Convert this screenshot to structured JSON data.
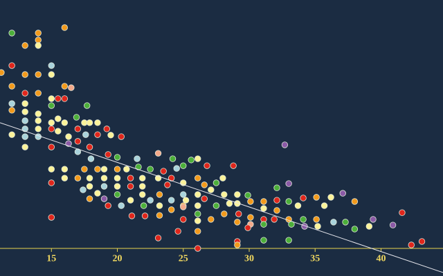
{
  "chart_data": {
    "type": "scatter",
    "xlim": [
      11.1,
      44.7
    ],
    "ylim": [
      -11.1,
      100
    ],
    "xticks": [
      15,
      20,
      25,
      30,
      35,
      40
    ],
    "palette": [
      "#e0261c",
      "#f39a1c",
      "#fbf39a",
      "#4caf3a",
      "#a9d3dc",
      "#8b5aa6",
      "#f4a98a"
    ],
    "x": [
      12.0,
      14.0,
      14.0,
      14.0,
      16.0,
      13.0,
      11.2,
      12.0,
      15.0,
      15.0,
      13.0,
      14.0,
      12.0,
      16.0,
      16.5,
      13.0,
      14.0,
      15.0,
      15.5,
      16.0,
      12.0,
      13.0,
      15.0,
      17.7,
      12.0,
      13.0,
      14.0,
      16.9,
      15.5,
      13.0,
      14.0,
      15.0,
      16.0,
      17.5,
      17.9,
      18.5,
      19.2,
      17.0,
      13.0,
      14.0,
      15.0,
      15.5,
      12.0,
      13.0,
      14.0,
      16.3,
      17.6,
      18.5,
      19.5,
      20.3,
      17.0,
      16.3,
      13.0,
      15.0,
      17.9,
      17.0,
      19.3,
      23.1,
      32.7,
      20.0,
      18.0,
      21.5,
      24.2,
      25.6,
      26.1,
      15.0,
      16.0,
      17.5,
      18.5,
      19.0,
      20.0,
      20.7,
      21.6,
      22.5,
      23.5,
      24.5,
      25.0,
      26.8,
      28.8,
      16.0,
      17.0,
      17.9,
      19.0,
      20.0,
      21.0,
      21.9,
      23.1,
      24.1,
      26.1,
      28.0,
      15.0,
      17.9,
      19.0,
      20.0,
      21.0,
      21.9,
      23.8,
      25.0,
      26.6,
      27.1,
      27.5,
      17.4,
      18.5,
      20.0,
      21.9,
      23.2,
      25.0,
      26.1,
      28.1,
      29.1,
      29.9,
      32.1,
      33.0,
      17.9,
      19.0,
      21.0,
      22.5,
      24.1,
      25.2,
      26.6,
      28.5,
      30.1,
      31.1,
      32.1,
      33.0,
      34.1,
      35.1,
      36.2,
      37.1,
      38.0,
      19.3,
      20.3,
      22.0,
      23.2,
      25.0,
      26.1,
      27.5,
      29.1,
      31.1,
      32.1,
      33.7,
      35.7,
      21.1,
      22.1,
      23.2,
      24.1,
      25.0,
      26.1,
      28.1,
      29.2,
      30.1,
      31.1,
      31.9,
      33.0,
      34.1,
      35.1,
      36.4,
      37.3,
      39.4,
      41.6,
      15.0,
      25.0,
      26.1,
      27.1,
      29.1,
      30.1,
      31.1,
      33.2,
      34.2,
      35.2,
      38.0,
      39.1,
      40.9,
      24.6,
      26.1,
      29.9,
      23.1,
      29.1,
      29.1,
      31.1,
      33.0,
      26.1,
      42.3,
      43.1
    ],
    "values": [
      86.7,
      86.7,
      83.9,
      81.7,
      88.9,
      81.7,
      70.8,
      73.6,
      73.6,
      70.0,
      70.0,
      70.0,
      65.3,
      65.3,
      64.7,
      62.5,
      62.5,
      60.3,
      60.3,
      60.3,
      58.3,
      58.3,
      57.5,
      57.5,
      55.6,
      55.0,
      54.2,
      52.8,
      52.2,
      51.4,
      51.4,
      50.6,
      50.6,
      50.6,
      50.6,
      50.6,
      48.1,
      48.1,
      48.1,
      48.1,
      48.1,
      47.2,
      45.8,
      45.0,
      45.0,
      45.0,
      45.8,
      45.8,
      45.6,
      45.0,
      43.1,
      42.2,
      40.8,
      40.8,
      40.8,
      38.9,
      37.8,
      38.3,
      41.7,
      36.7,
      36.1,
      36.1,
      36.1,
      35.6,
      36.1,
      31.9,
      31.9,
      31.9,
      31.9,
      31.9,
      31.9,
      31.9,
      32.8,
      31.9,
      31.1,
      32.2,
      33.3,
      33.3,
      33.3,
      28.3,
      28.3,
      28.3,
      28.3,
      28.3,
      28.3,
      28.3,
      28.3,
      28.3,
      28.3,
      28.3,
      26.4,
      25.0,
      25.0,
      25.0,
      25.0,
      25.0,
      25.6,
      26.4,
      25.6,
      23.6,
      26.4,
      23.6,
      22.2,
      21.7,
      21.7,
      21.7,
      21.7,
      21.7,
      21.7,
      21.7,
      21.4,
      24.4,
      26.1,
      20.0,
      20.0,
      19.4,
      19.4,
      19.4,
      19.4,
      20.0,
      18.1,
      18.9,
      18.9,
      19.4,
      18.9,
      20.3,
      20.6,
      20.6,
      22.2,
      18.9,
      17.2,
      17.2,
      17.2,
      17.2,
      17.2,
      17.2,
      17.2,
      18.1,
      16.1,
      15.3,
      17.2,
      17.2,
      13.1,
      13.1,
      13.3,
      15.6,
      16.7,
      13.9,
      13.9,
      13.9,
      12.5,
      11.7,
      11.7,
      11.7,
      11.7,
      11.7,
      10.6,
      10.6,
      11.7,
      14.4,
      12.5,
      11.7,
      11.1,
      11.7,
      10.6,
      9.7,
      9.7,
      9.7,
      8.9,
      8.9,
      7.8,
      8.9,
      9.4,
      6.9,
      6.9,
      8.3,
      4.2,
      2.8,
      1.4,
      3.3,
      3.3,
      0,
      1.4,
      2.8
    ],
    "color_index": [
      3,
      1,
      1,
      2,
      1,
      1,
      1,
      0,
      4,
      2,
      1,
      1,
      1,
      1,
      6,
      0,
      1,
      2,
      0,
      0,
      4,
      2,
      3,
      3,
      1,
      2,
      2,
      3,
      2,
      4,
      2,
      2,
      2,
      2,
      2,
      2,
      0,
      0,
      4,
      2,
      0,
      2,
      2,
      4,
      4,
      2,
      4,
      0,
      2,
      0,
      0,
      5,
      2,
      0,
      0,
      4,
      0,
      6,
      5,
      3,
      4,
      4,
      3,
      3,
      2,
      2,
      2,
      1,
      1,
      2,
      1,
      2,
      3,
      3,
      0,
      4,
      3,
      0,
      0,
      2,
      1,
      2,
      2,
      2,
      0,
      2,
      2,
      0,
      1,
      2,
      0,
      2,
      4,
      2,
      0,
      2,
      0,
      2,
      1,
      2,
      3,
      4,
      2,
      3,
      2,
      1,
      4,
      2,
      2,
      2,
      3,
      3,
      5,
      1,
      5,
      2,
      4,
      4,
      2,
      0,
      2,
      1,
      1,
      0,
      3,
      0,
      1,
      2,
      5,
      1,
      0,
      4,
      3,
      2,
      1,
      2,
      3,
      2,
      2,
      1,
      2,
      2,
      0,
      0,
      1,
      1,
      6,
      3,
      1,
      0,
      1,
      0,
      0,
      1,
      3,
      1,
      4,
      3,
      5,
      0,
      0,
      0,
      2,
      1,
      1,
      6,
      3,
      3,
      5,
      2,
      3,
      2,
      5,
      0,
      1,
      0,
      0,
      0,
      1,
      3,
      3,
      0,
      0,
      0
    ],
    "trend_line": {
      "x": [
        11.1,
        44.7
      ],
      "y": [
        50.6,
        -9.7
      ],
      "color": "#e8e8ee"
    },
    "axis_color": "#e8d44d"
  }
}
